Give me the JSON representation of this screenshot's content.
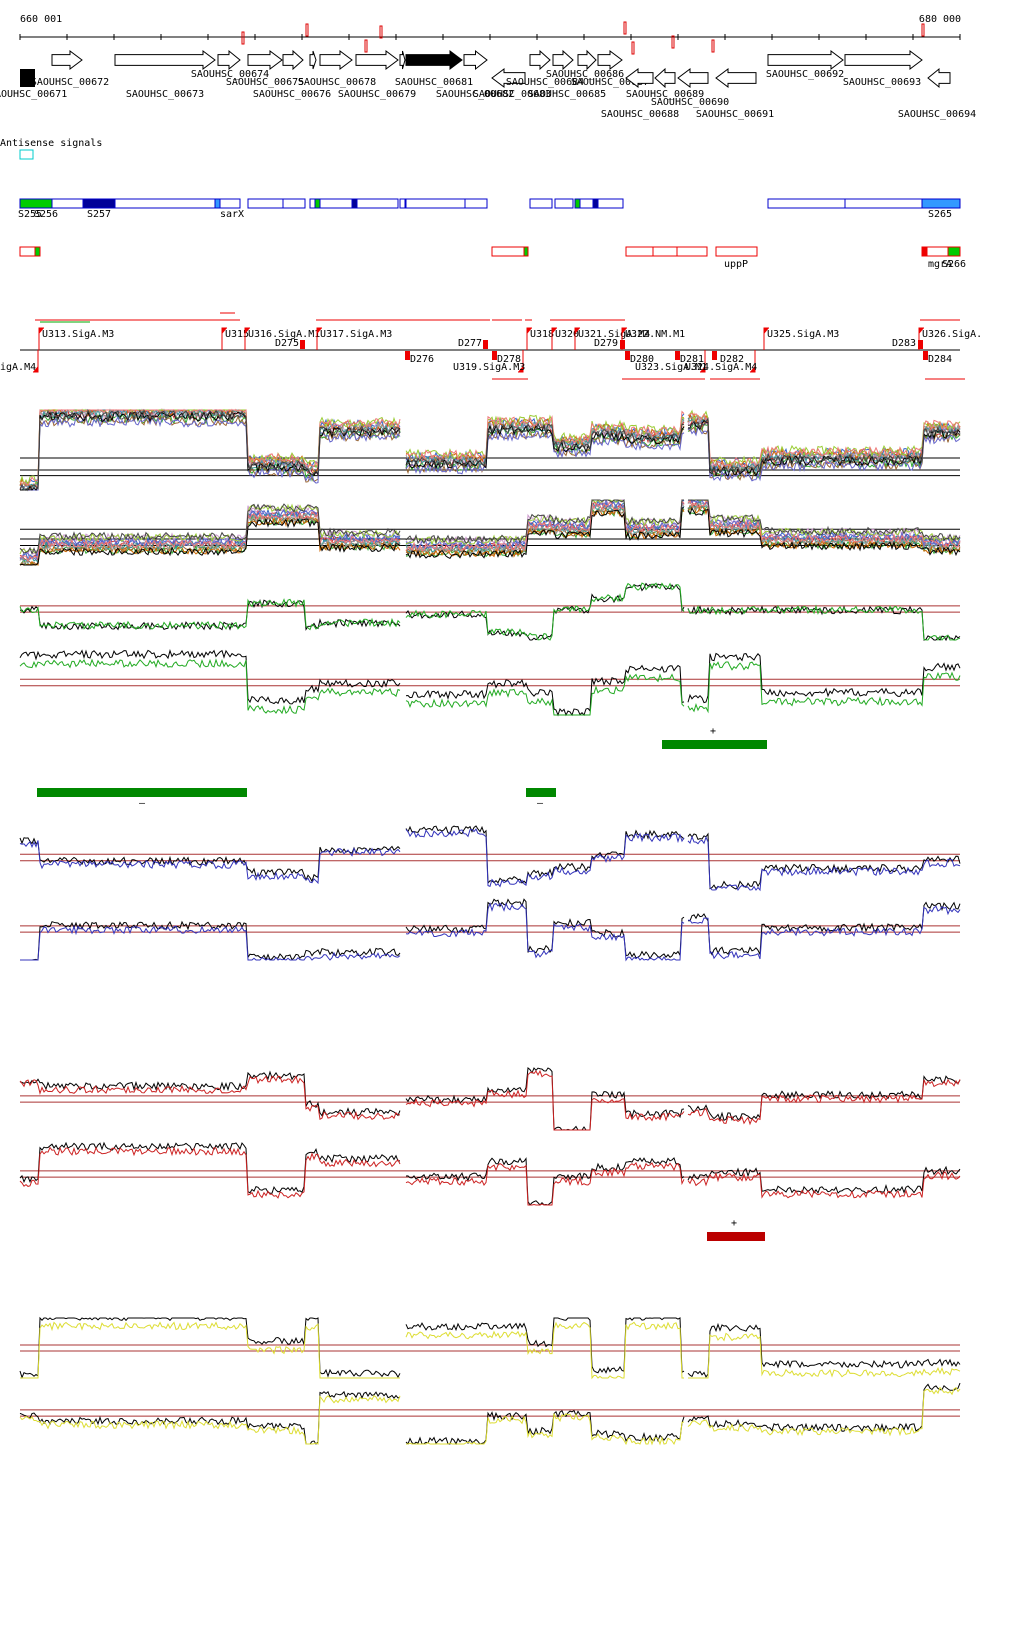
{
  "axis": {
    "start": "660 001",
    "end": "680 000"
  },
  "genes": [
    "AOUHSC_00671",
    "SAOUHSC_00672",
    "SAOUHSC_00673",
    "SAOUHSC_00674",
    "SAOUHSC_00675",
    "SAOUHSC_00676",
    "SAOUHSC_00678",
    "SAOUHSC_00679",
    "SAOUHSC_00681",
    "SAOUHSC_00682",
    "SAOUHSC_00683",
    "SAOUHSC_00684",
    "SAOUHSC_00685",
    "SAOUHSC_00686",
    "SAOUHSC_00687",
    "SAOUHSC_00688",
    "SAOUHSC_00689",
    "SAOUHSC_00690",
    "SAOUHSC_00691",
    "SAOUHSC_00692",
    "SAOUHSC_00693",
    "SAOUHSC_00694"
  ],
  "antisense_title": "Antisense signals",
  "segment_labels": [
    "S255",
    "S256",
    "S257",
    "sarX",
    "S265"
  ],
  "red_segment_labels": [
    "uppP",
    "mgrA",
    "S266"
  ],
  "promoters": [
    "U313.SigA.M3",
    "U315",
    "U316.SigA.M1",
    "U317.SigA.M3",
    "U318",
    "U320",
    "U321.SigA.M4",
    "U322.NM.M1",
    "U325.SigA.M3",
    "U326.SigA.",
    "igA.M4",
    "U319.SigA.M3",
    "U323.SigA.M1",
    "U324.SigA.M4"
  ],
  "terminators": [
    "D275",
    "D276",
    "D277",
    "D278",
    "D279",
    "D280",
    "D281",
    "D282",
    "D283",
    "D284"
  ],
  "strand_signs": [
    "+",
    "–",
    "–",
    "+"
  ]
}
